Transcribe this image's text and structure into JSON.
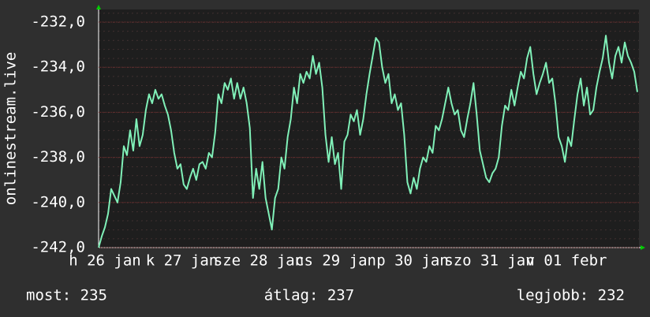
{
  "chart_data": {
    "type": "line",
    "y_label": "onlinestream.live",
    "x_labels": [
      "h 26 jan",
      "k 27 jan",
      "sze 28 jan",
      "cs 29 jan",
      "p 30 jan",
      "szo 31 jan",
      "v 01 febr"
    ],
    "series": [
      {
        "color": "#80f0b8",
        "values": [
          -242,
          -241.5,
          -241.1,
          -240.5,
          -239.4,
          -239.7,
          -240.0,
          -239.1,
          -237.5,
          -237.9,
          -236.8,
          -237.7,
          -236.3,
          -237.5,
          -237.0,
          -235.9,
          -235.2,
          -235.6,
          -235.0,
          -235.4,
          -235.2,
          -235.7,
          -236.1,
          -236.8,
          -237.8,
          -238.5,
          -238.3,
          -239.2,
          -239.4,
          -238.9,
          -238.5,
          -239.0,
          -238.3,
          -238.2,
          -238.5,
          -237.8,
          -238.0,
          -236.9,
          -235.2,
          -235.6,
          -234.7,
          -235.0,
          -234.5,
          -235.4,
          -234.7,
          -235.4,
          -234.9,
          -235.6,
          -236.7,
          -239.8,
          -238.5,
          -239.4,
          -238.2,
          -239.8,
          -240.5,
          -241.2,
          -239.8,
          -239.4,
          -238.0,
          -238.5,
          -237.1,
          -236.3,
          -234.9,
          -235.6,
          -234.3,
          -234.7,
          -234.2,
          -234.5,
          -233.5,
          -234.3,
          -233.8,
          -234.9,
          -237.0,
          -238.2,
          -237.1,
          -238.3,
          -237.8,
          -239.4,
          -237.3,
          -237.0,
          -236.1,
          -236.4,
          -235.9,
          -237.0,
          -236.3,
          -235.2,
          -234.3,
          -233.5,
          -232.7,
          -232.9,
          -234.0,
          -234.7,
          -234.3,
          -235.6,
          -235.2,
          -235.9,
          -235.6,
          -237.0,
          -239.1,
          -239.6,
          -238.9,
          -239.4,
          -238.5,
          -238.0,
          -238.2,
          -237.5,
          -237.8,
          -236.6,
          -236.8,
          -236.3,
          -235.6,
          -234.9,
          -235.6,
          -236.1,
          -235.9,
          -236.8,
          -237.1,
          -236.3,
          -235.6,
          -234.7,
          -236.1,
          -237.7,
          -238.3,
          -238.9,
          -239.1,
          -238.7,
          -238.5,
          -238.0,
          -236.6,
          -235.7,
          -235.9,
          -235.0,
          -235.7,
          -234.9,
          -234.2,
          -234.5,
          -233.6,
          -233.1,
          -234.3,
          -235.2,
          -234.7,
          -234.3,
          -233.8,
          -234.7,
          -234.5,
          -235.6,
          -237.1,
          -237.5,
          -238.2,
          -237.1,
          -237.5,
          -236.3,
          -235.2,
          -234.5,
          -235.7,
          -234.9,
          -236.1,
          -235.9,
          -234.9,
          -234.2,
          -233.6,
          -232.6,
          -233.8,
          -234.5,
          -233.5,
          -233.1,
          -233.8,
          -232.9,
          -233.5,
          -233.8,
          -234.2,
          -235.1
        ]
      }
    ],
    "ylim": [
      -242,
      -231.44
    ],
    "yticks": [
      {
        "value": -242,
        "label": "-242,0"
      },
      {
        "value": -240,
        "label": "-240,0"
      },
      {
        "value": -238,
        "label": "-238,0"
      },
      {
        "value": -236,
        "label": "-236,0"
      },
      {
        "value": -234,
        "label": "-234,0"
      },
      {
        "value": -232,
        "label": "-232,0"
      }
    ],
    "grid": true,
    "footer": [
      "most: 235",
      "átlag: 237",
      "legjobb: 232"
    ]
  }
}
